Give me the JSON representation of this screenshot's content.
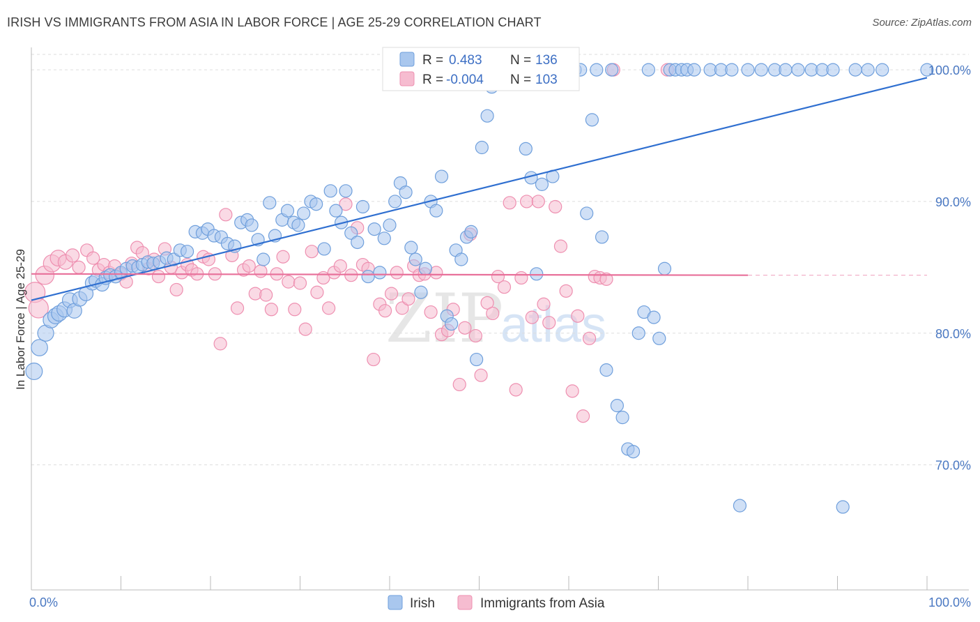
{
  "header": {
    "title": "IRISH VS IMMIGRANTS FROM ASIA IN LABOR FORCE | AGE 25-29 CORRELATION CHART",
    "source": "Source: ZipAtlas.com"
  },
  "watermark": {
    "zip": "ZIP",
    "atlas": "atlas"
  },
  "legend_top": {
    "r_label": "R =",
    "n_label": "N =",
    "irish": {
      "r": "0.483",
      "n": "136"
    },
    "asia": {
      "r": "-0.004",
      "n": "103"
    }
  },
  "legend_bottom": {
    "irish": "Irish",
    "asia": "Immigrants from Asia"
  },
  "colors": {
    "irish_fill": "#a9c7ee",
    "irish_stroke": "#6f9fdc",
    "irish_line": "#2f6fd0",
    "asia_fill": "#f6bcd0",
    "asia_stroke": "#ee8fb0",
    "asia_line": "#e8709a",
    "grid": "#dddddd",
    "tick_label": "#4a78c2"
  },
  "chart_data": {
    "type": "scatter",
    "title": "IRISH VS IMMIGRANTS FROM ASIA IN LABOR FORCE | AGE 25-29 CORRELATION CHART",
    "xlabel": "",
    "ylabel": "In Labor Force | Age 25-29",
    "xlim": [
      0,
      100
    ],
    "ylim": [
      60.5,
      101.7
    ],
    "y_ticks": [
      70,
      80,
      90,
      100
    ],
    "y_tick_labels": [
      "70.0%",
      "80.0%",
      "90.0%",
      "100.0%"
    ],
    "x_tick_labels": [
      "0.0%",
      "100.0%"
    ],
    "grid": true,
    "series": [
      {
        "name": "Irish",
        "r": 0.483,
        "n": 136,
        "trend": {
          "x": [
            0,
            100
          ],
          "y": [
            82.5,
            99.4
          ]
        },
        "points": [
          [
            0.3,
            77.1
          ],
          [
            0.9,
            78.9
          ],
          [
            1.6,
            80.0
          ],
          [
            2.2,
            81.0
          ],
          [
            2.7,
            81.3
          ],
          [
            3.1,
            81.5
          ],
          [
            3.7,
            81.8
          ],
          [
            4.3,
            82.5
          ],
          [
            4.8,
            81.7
          ],
          [
            5.4,
            82.6
          ],
          [
            6.1,
            83.0
          ],
          [
            6.8,
            83.8
          ],
          [
            7.2,
            84.0
          ],
          [
            7.9,
            83.7
          ],
          [
            8.3,
            84.2
          ],
          [
            8.8,
            84.4
          ],
          [
            9.4,
            84.3
          ],
          [
            10.0,
            84.6
          ],
          [
            10.6,
            84.9
          ],
          [
            11.3,
            85.1
          ],
          [
            11.9,
            85.0
          ],
          [
            12.4,
            85.2
          ],
          [
            13.0,
            85.4
          ],
          [
            13.6,
            85.3
          ],
          [
            14.3,
            85.4
          ],
          [
            15.1,
            85.7
          ],
          [
            15.9,
            85.6
          ],
          [
            16.6,
            86.3
          ],
          [
            17.4,
            86.2
          ],
          [
            18.3,
            87.7
          ],
          [
            19.1,
            87.6
          ],
          [
            19.7,
            87.9
          ],
          [
            20.4,
            87.4
          ],
          [
            21.2,
            87.3
          ],
          [
            21.9,
            86.8
          ],
          [
            22.7,
            86.6
          ],
          [
            23.4,
            88.4
          ],
          [
            24.1,
            88.6
          ],
          [
            24.6,
            88.2
          ],
          [
            25.3,
            87.1
          ],
          [
            25.9,
            85.6
          ],
          [
            26.6,
            89.9
          ],
          [
            27.2,
            87.4
          ],
          [
            28.0,
            88.6
          ],
          [
            28.6,
            89.3
          ],
          [
            29.3,
            88.4
          ],
          [
            29.8,
            88.2
          ],
          [
            30.4,
            89.1
          ],
          [
            31.2,
            90.0
          ],
          [
            31.8,
            89.8
          ],
          [
            32.7,
            86.4
          ],
          [
            33.4,
            90.8
          ],
          [
            34.0,
            89.3
          ],
          [
            34.6,
            88.4
          ],
          [
            35.1,
            90.8
          ],
          [
            35.7,
            87.6
          ],
          [
            36.4,
            86.9
          ],
          [
            37.0,
            89.6
          ],
          [
            37.6,
            84.3
          ],
          [
            38.3,
            87.9
          ],
          [
            38.9,
            84.6
          ],
          [
            39.4,
            87.2
          ],
          [
            40.0,
            88.2
          ],
          [
            40.6,
            90.0
          ],
          [
            41.2,
            91.4
          ],
          [
            41.8,
            90.7
          ],
          [
            42.4,
            86.5
          ],
          [
            42.9,
            85.6
          ],
          [
            43.5,
            83.1
          ],
          [
            44.0,
            84.9
          ],
          [
            44.6,
            90.0
          ],
          [
            45.2,
            89.3
          ],
          [
            45.8,
            91.9
          ],
          [
            46.4,
            81.3
          ],
          [
            46.9,
            80.7
          ],
          [
            47.4,
            86.3
          ],
          [
            48.0,
            85.6
          ],
          [
            48.6,
            87.3
          ],
          [
            49.1,
            87.7
          ],
          [
            49.7,
            78.0
          ],
          [
            50.3,
            94.1
          ],
          [
            50.9,
            96.5
          ],
          [
            51.4,
            98.7
          ],
          [
            52.1,
            100.0
          ],
          [
            53.0,
            100.0
          ],
          [
            53.8,
            100.0
          ],
          [
            54.6,
            100.0
          ],
          [
            55.2,
            94.0
          ],
          [
            55.8,
            91.8
          ],
          [
            56.4,
            84.5
          ],
          [
            57.0,
            91.3
          ],
          [
            57.6,
            100.0
          ],
          [
            58.2,
            91.9
          ],
          [
            58.8,
            100.0
          ],
          [
            59.5,
            100.0
          ],
          [
            60.1,
            100.0
          ],
          [
            60.7,
            100.0
          ],
          [
            61.3,
            100.0
          ],
          [
            62.0,
            89.1
          ],
          [
            62.6,
            96.2
          ],
          [
            63.1,
            100.0
          ],
          [
            63.7,
            87.3
          ],
          [
            64.2,
            77.2
          ],
          [
            64.8,
            100.0
          ],
          [
            65.4,
            74.5
          ],
          [
            66.0,
            73.6
          ],
          [
            66.6,
            71.2
          ],
          [
            67.2,
            71.0
          ],
          [
            67.8,
            80.0
          ],
          [
            68.4,
            81.6
          ],
          [
            68.9,
            100.0
          ],
          [
            69.5,
            81.2
          ],
          [
            70.1,
            79.6
          ],
          [
            70.7,
            84.9
          ],
          [
            71.3,
            100.0
          ],
          [
            71.9,
            100.0
          ],
          [
            72.6,
            100.0
          ],
          [
            73.2,
            100.0
          ],
          [
            74.0,
            100.0
          ],
          [
            75.8,
            100.0
          ],
          [
            77.0,
            100.0
          ],
          [
            78.2,
            100.0
          ],
          [
            79.1,
            66.9
          ],
          [
            80.0,
            100.0
          ],
          [
            81.5,
            100.0
          ],
          [
            83.0,
            100.0
          ],
          [
            84.2,
            100.0
          ],
          [
            85.6,
            100.0
          ],
          [
            87.1,
            100.0
          ],
          [
            88.3,
            100.0
          ],
          [
            89.5,
            100.0
          ],
          [
            90.6,
            66.8
          ],
          [
            92.0,
            100.0
          ],
          [
            93.4,
            100.0
          ],
          [
            95.0,
            100.0
          ],
          [
            100.0,
            100.0
          ]
        ]
      },
      {
        "name": "Immigrants from Asia",
        "r": -0.004,
        "n": 103,
        "trend": {
          "x": [
            0,
            80
          ],
          "y": [
            84.5,
            84.4
          ]
        },
        "points": [
          [
            0.4,
            83.1
          ],
          [
            0.8,
            81.9
          ],
          [
            1.5,
            84.4
          ],
          [
            2.3,
            85.3
          ],
          [
            3.0,
            85.7
          ],
          [
            3.8,
            85.4
          ],
          [
            4.6,
            85.9
          ],
          [
            5.3,
            85.0
          ],
          [
            6.2,
            86.3
          ],
          [
            6.9,
            85.7
          ],
          [
            7.5,
            84.8
          ],
          [
            8.1,
            85.2
          ],
          [
            8.7,
            84.6
          ],
          [
            9.3,
            85.1
          ],
          [
            10.0,
            84.5
          ],
          [
            10.6,
            83.9
          ],
          [
            11.2,
            85.3
          ],
          [
            11.8,
            86.5
          ],
          [
            12.4,
            86.1
          ],
          [
            13.1,
            84.9
          ],
          [
            13.7,
            85.6
          ],
          [
            14.2,
            84.3
          ],
          [
            14.9,
            86.4
          ],
          [
            15.6,
            85.0
          ],
          [
            16.2,
            83.3
          ],
          [
            16.8,
            84.6
          ],
          [
            17.4,
            85.2
          ],
          [
            17.9,
            84.8
          ],
          [
            18.5,
            84.5
          ],
          [
            19.2,
            85.8
          ],
          [
            19.8,
            85.6
          ],
          [
            20.5,
            84.5
          ],
          [
            21.1,
            79.2
          ],
          [
            21.7,
            89.0
          ],
          [
            22.4,
            85.9
          ],
          [
            23.0,
            81.9
          ],
          [
            23.7,
            84.8
          ],
          [
            24.3,
            85.1
          ],
          [
            25.0,
            83.0
          ],
          [
            25.6,
            84.7
          ],
          [
            26.2,
            82.9
          ],
          [
            26.8,
            81.8
          ],
          [
            27.4,
            84.5
          ],
          [
            28.1,
            85.8
          ],
          [
            28.7,
            83.9
          ],
          [
            29.4,
            81.8
          ],
          [
            30.0,
            83.8
          ],
          [
            30.6,
            80.3
          ],
          [
            31.3,
            86.2
          ],
          [
            31.9,
            83.1
          ],
          [
            32.6,
            84.2
          ],
          [
            33.2,
            81.9
          ],
          [
            33.8,
            84.6
          ],
          [
            34.5,
            85.1
          ],
          [
            35.1,
            89.8
          ],
          [
            35.7,
            84.4
          ],
          [
            36.4,
            88.0
          ],
          [
            37.0,
            85.2
          ],
          [
            37.6,
            84.9
          ],
          [
            38.2,
            78.0
          ],
          [
            38.9,
            82.2
          ],
          [
            39.5,
            81.7
          ],
          [
            40.2,
            83.0
          ],
          [
            40.8,
            84.6
          ],
          [
            41.4,
            81.9
          ],
          [
            42.1,
            82.6
          ],
          [
            42.7,
            85.1
          ],
          [
            43.3,
            84.4
          ],
          [
            43.9,
            84.5
          ],
          [
            44.6,
            81.6
          ],
          [
            45.2,
            84.6
          ],
          [
            45.8,
            79.9
          ],
          [
            46.5,
            80.2
          ],
          [
            47.1,
            81.8
          ],
          [
            47.8,
            76.1
          ],
          [
            48.4,
            80.4
          ],
          [
            49.0,
            87.5
          ],
          [
            49.6,
            79.8
          ],
          [
            50.2,
            76.8
          ],
          [
            50.9,
            82.3
          ],
          [
            51.5,
            81.5
          ],
          [
            52.1,
            84.3
          ],
          [
            52.8,
            83.5
          ],
          [
            53.4,
            89.9
          ],
          [
            54.1,
            75.7
          ],
          [
            54.7,
            84.2
          ],
          [
            55.3,
            90.0
          ],
          [
            55.9,
            81.2
          ],
          [
            56.6,
            90.0
          ],
          [
            57.2,
            82.2
          ],
          [
            57.8,
            80.8
          ],
          [
            58.5,
            89.6
          ],
          [
            59.1,
            86.6
          ],
          [
            59.7,
            83.2
          ],
          [
            60.4,
            75.6
          ],
          [
            61.0,
            81.3
          ],
          [
            61.6,
            73.7
          ],
          [
            62.3,
            79.6
          ],
          [
            62.9,
            84.3
          ],
          [
            63.5,
            84.2
          ],
          [
            64.2,
            84.1
          ],
          [
            65.0,
            100.0
          ],
          [
            71.0,
            100.0
          ]
        ]
      }
    ]
  }
}
